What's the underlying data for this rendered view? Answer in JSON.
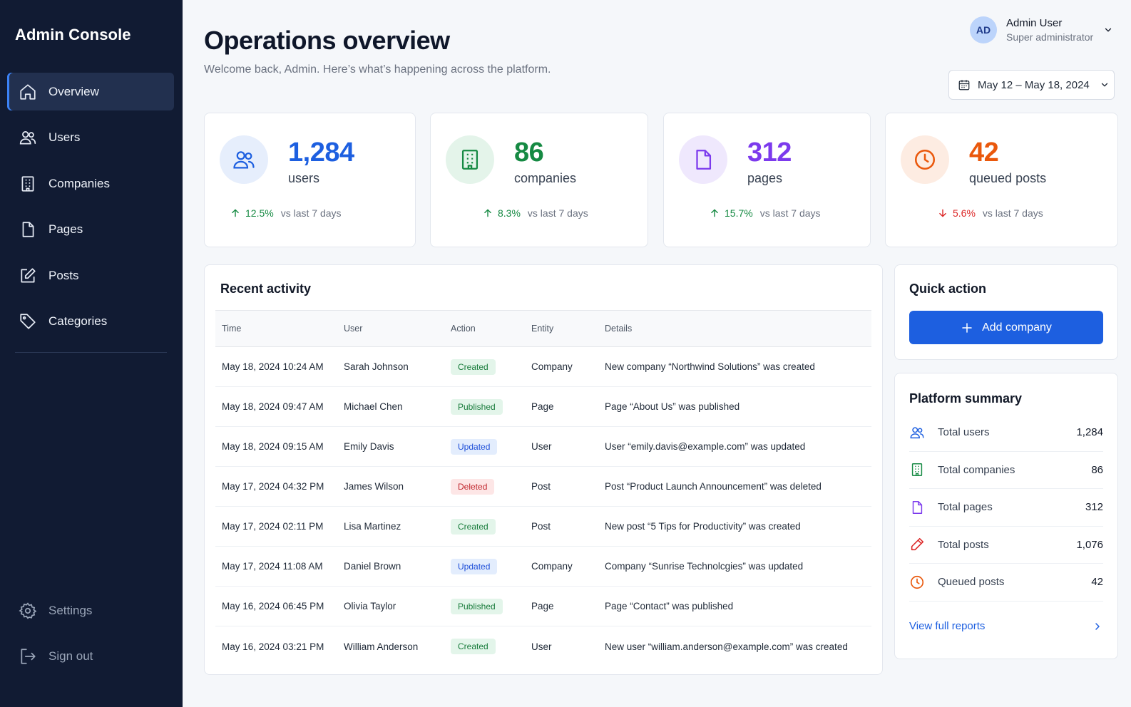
{
  "sidebar": {
    "brand": "Admin Console",
    "items": [
      {
        "label": "Overview",
        "icon": "home-icon"
      },
      {
        "label": "Users",
        "icon": "users-icon"
      },
      {
        "label": "Companies",
        "icon": "building-icon"
      },
      {
        "label": "Pages",
        "icon": "file-icon"
      },
      {
        "label": "Posts",
        "icon": "edit-icon"
      },
      {
        "label": "Categories",
        "icon": "tag-icon"
      }
    ],
    "bottom": [
      {
        "label": "Settings",
        "icon": "gear-icon"
      },
      {
        "label": "Sign out",
        "icon": "logout-icon"
      }
    ]
  },
  "header": {
    "title": "Operations overview",
    "subtitle": "Welcome back, Admin. Here’s what’s happening across the platform.",
    "user": {
      "initials": "AD",
      "name": "Admin User",
      "role": "Super administrator"
    },
    "date_range": "May 12 – May 18, 2024"
  },
  "stats": [
    {
      "value": "1,284",
      "unit": "users",
      "change": "12.5%",
      "direction": "up",
      "compare": "vs last 7 days",
      "color": "#1d5fe0",
      "icon": "users-icon"
    },
    {
      "value": "86",
      "unit": "companies",
      "change": "8.3%",
      "direction": "up",
      "compare": "vs last 7 days",
      "color": "#168a43",
      "icon": "building-icon"
    },
    {
      "value": "312",
      "unit": "pages",
      "change": "15.7%",
      "direction": "up",
      "compare": "vs last 7 days",
      "color": "#7c3aed",
      "icon": "file-icon"
    },
    {
      "value": "42",
      "unit": "queued posts",
      "change": "5.6%",
      "direction": "down",
      "compare": "vs last 7 days",
      "color": "#ea580c",
      "icon": "clock-icon"
    }
  ],
  "activity": {
    "title": "Recent activity",
    "columns": [
      "Time",
      "User",
      "Action",
      "Entity",
      "Details"
    ],
    "rows": [
      {
        "time": "May 18, 2024 10:24 AM",
        "user": "Sarah Johnson",
        "action": "Created",
        "entity": "Company",
        "details": "New company “Northwind Solutions” was created"
      },
      {
        "time": "May 18, 2024 09:47 AM",
        "user": "Michael Chen",
        "action": "Published",
        "entity": "Page",
        "details": "Page “About Us” was published"
      },
      {
        "time": "May 18, 2024 09:15 AM",
        "user": "Emily Davis",
        "action": "Updated",
        "entity": "User",
        "details": "User “emily.davis@example.com” was updated"
      },
      {
        "time": "May 17, 2024 04:32 PM",
        "user": "James Wilson",
        "action": "Deleted",
        "entity": "Post",
        "details": "Post “Product Launch Announcement” was deleted"
      },
      {
        "time": "May 17, 2024 02:11 PM",
        "user": "Lisa Martinez",
        "action": "Created",
        "entity": "Post",
        "details": "New post “5 Tips for Productivity” was created"
      },
      {
        "time": "May 17, 2024 11:08 AM",
        "user": "Daniel Brown",
        "action": "Updated",
        "entity": "Company",
        "details": "Company “Sunrise Technolcgies” was updated"
      },
      {
        "time": "May 16, 2024 06:45 PM",
        "user": "Olivia Taylor",
        "action": "Published",
        "entity": "Page",
        "details": "Page “Contact” was published"
      },
      {
        "time": "May 16, 2024 03:21 PM",
        "user": "William Anderson",
        "action": "Created",
        "entity": "User",
        "details": "New user “william.anderson@example.com” was created"
      }
    ]
  },
  "quick_action": {
    "title": "Quick action",
    "button": "Add company"
  },
  "summary": {
    "title": "Platform summary",
    "rows": [
      {
        "label": "Total users",
        "value": "1,284",
        "icon": "users-icon",
        "color": "#1d5fe0"
      },
      {
        "label": "Total companies",
        "value": "86",
        "icon": "building-icon",
        "color": "#168a43"
      },
      {
        "label": "Total pages",
        "value": "312",
        "icon": "file-icon",
        "color": "#7c3aed"
      },
      {
        "label": "Total posts",
        "value": "1,076",
        "icon": "pencil-icon",
        "color": "#dc2626"
      },
      {
        "label": "Queued posts",
        "value": "42",
        "icon": "clock-icon",
        "color": "#ea580c"
      }
    ],
    "link": "View full reports"
  }
}
